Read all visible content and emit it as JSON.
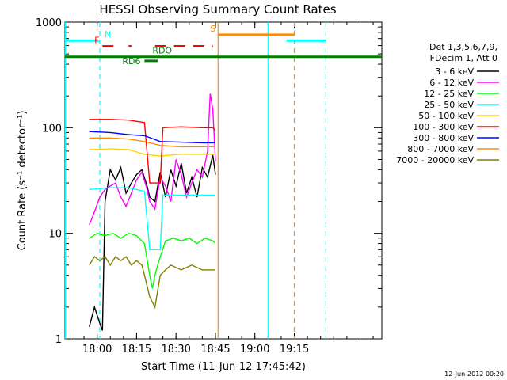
{
  "chart_data": {
    "type": "line",
    "title": "HESSI Observing Summary Count Rates",
    "xlabel": "Start Time (11-Jun-12 17:45:42)",
    "ylabel": "Count Rate (s⁻¹ detector⁻¹)",
    "ylog": true,
    "ylim": [
      1,
      1000
    ],
    "xlim_minutes": [
      17.75,
      138.3
    ],
    "x_ticks": [
      {
        "t": 30,
        "label": "18:00"
      },
      {
        "t": 45,
        "label": "18:15"
      },
      {
        "t": 60,
        "label": "18:30"
      },
      {
        "t": 75,
        "label": "18:45"
      },
      {
        "t": 90,
        "label": "19:00"
      },
      {
        "t": 105,
        "label": "19:15"
      }
    ],
    "y_ticks": [
      {
        "v": 1,
        "label": "1"
      },
      {
        "v": 10,
        "label": "10"
      },
      {
        "v": 100,
        "label": "100"
      },
      {
        "v": 1000,
        "label": "1000"
      }
    ],
    "legend_header": [
      "Det 1,3,5,6,7,9,",
      "FDecim 1, Att 0"
    ],
    "series": [
      {
        "name": "3 - 6 keV",
        "color": "#000000",
        "segments": [
          [
            [
              27,
              1.3
            ],
            [
              29,
              2
            ],
            [
              31,
              1.4
            ],
            [
              32,
              1.2
            ],
            [
              33,
              20
            ],
            [
              35,
              40
            ],
            [
              37,
              32
            ],
            [
              39,
              42
            ],
            [
              41,
              24
            ],
            [
              43,
              30
            ],
            [
              45,
              36
            ],
            [
              47,
              40
            ],
            [
              49,
              28
            ],
            [
              50,
              22
            ],
            [
              52,
              20
            ],
            [
              54,
              38
            ],
            [
              56,
              22
            ],
            [
              58,
              40
            ],
            [
              60,
              28
            ],
            [
              62,
              46
            ],
            [
              64,
              24
            ],
            [
              66,
              34
            ],
            [
              68,
              22
            ],
            [
              70,
              42
            ],
            [
              72,
              34
            ],
            [
              74,
              55
            ],
            [
              75,
              36
            ]
          ]
        ]
      },
      {
        "name": "6 - 12 keV",
        "color": "#ff00ff",
        "segments": [
          [
            [
              27,
              12
            ],
            [
              29,
              16
            ],
            [
              31,
              22
            ],
            [
              33,
              26
            ],
            [
              35,
              28
            ],
            [
              37,
              30
            ],
            [
              39,
              22
            ],
            [
              41,
              18
            ],
            [
              43,
              24
            ],
            [
              45,
              32
            ],
            [
              47,
              38
            ],
            [
              49,
              26
            ],
            [
              50,
              20
            ],
            [
              52,
              17
            ],
            [
              54,
              34
            ],
            [
              56,
              28
            ],
            [
              58,
              20
            ],
            [
              60,
              50
            ],
            [
              62,
              36
            ],
            [
              64,
              22
            ],
            [
              66,
              30
            ],
            [
              68,
              40
            ],
            [
              70,
              34
            ],
            [
              72,
              60
            ],
            [
              73,
              210
            ],
            [
              74,
              150
            ],
            [
              75,
              48
            ]
          ]
        ]
      },
      {
        "name": "12 - 25 keV",
        "color": "#00ff00",
        "segments": [
          [
            [
              27,
              9
            ],
            [
              30,
              10
            ],
            [
              33,
              9.5
            ],
            [
              36,
              10
            ],
            [
              39,
              9
            ],
            [
              42,
              10
            ],
            [
              45,
              9.5
            ],
            [
              48,
              8
            ],
            [
              50,
              4
            ],
            [
              51,
              3
            ],
            [
              52,
              4
            ],
            [
              53,
              5
            ],
            [
              56,
              8.5
            ],
            [
              59,
              9
            ],
            [
              62,
              8.5
            ],
            [
              65,
              9
            ],
            [
              68,
              8
            ],
            [
              71,
              9
            ],
            [
              74,
              8.5
            ],
            [
              75,
              8
            ]
          ]
        ]
      },
      {
        "name": "25 - 50 keV",
        "color": "#00ffff",
        "segments": [
          [
            [
              27,
              26
            ],
            [
              35,
              27
            ],
            [
              42,
              27
            ],
            [
              48,
              25
            ],
            [
              50,
              7
            ],
            [
              54,
              7
            ],
            [
              55,
              23
            ],
            [
              62,
              23
            ],
            [
              70,
              23
            ],
            [
              75,
              23
            ]
          ]
        ]
      },
      {
        "name": "50 - 100 keV",
        "color": "#ffd700",
        "segments": [
          [
            [
              27,
              62
            ],
            [
              35,
              63
            ],
            [
              42,
              62
            ],
            [
              48,
              56
            ],
            [
              54,
              54
            ],
            [
              62,
              56
            ],
            [
              70,
              56
            ],
            [
              75,
              56
            ]
          ]
        ]
      },
      {
        "name": "100 - 300 keV",
        "color": "#ff0000",
        "segments": [
          [
            [
              27,
              120
            ],
            [
              35,
              120
            ],
            [
              42,
              118
            ],
            [
              48,
              112
            ],
            [
              50,
              30
            ],
            [
              54,
              30
            ],
            [
              55,
              100
            ],
            [
              62,
              102
            ],
            [
              70,
              100
            ],
            [
              74,
              100
            ],
            [
              75,
              95
            ]
          ]
        ]
      },
      {
        "name": "300 - 800 keV",
        "color": "#0000ff",
        "segments": [
          [
            [
              27,
              92
            ],
            [
              35,
              90
            ],
            [
              42,
              86
            ],
            [
              48,
              84
            ],
            [
              54,
              74
            ],
            [
              62,
              73
            ],
            [
              70,
              72
            ],
            [
              75,
              72
            ]
          ]
        ]
      },
      {
        "name": "800 - 7000 keV",
        "color": "#ff8c00",
        "segments": [
          [
            [
              27,
              80
            ],
            [
              35,
              80
            ],
            [
              42,
              78
            ],
            [
              48,
              74
            ],
            [
              54,
              68
            ],
            [
              62,
              66
            ],
            [
              70,
              66
            ],
            [
              75,
              66
            ]
          ]
        ]
      },
      {
        "name": "7000 - 20000 keV",
        "color": "#808000",
        "segments": [
          [
            [
              27,
              5
            ],
            [
              29,
              6
            ],
            [
              31,
              5.5
            ],
            [
              33,
              6
            ],
            [
              35,
              5
            ],
            [
              37,
              6
            ],
            [
              39,
              5.5
            ],
            [
              41,
              6
            ],
            [
              43,
              5
            ],
            [
              45,
              5.5
            ],
            [
              47,
              5
            ],
            [
              48,
              4
            ],
            [
              50,
              2.5
            ],
            [
              52,
              2
            ],
            [
              54,
              4
            ],
            [
              56,
              4.5
            ],
            [
              58,
              5
            ],
            [
              62,
              4.5
            ],
            [
              66,
              5
            ],
            [
              70,
              4.5
            ],
            [
              75,
              4.5
            ]
          ]
        ]
      }
    ],
    "flags": [
      {
        "label": "N",
        "color": "#00ffff",
        "y": 670,
        "spans": [
          [
            17.75,
            31
          ],
          [
            102,
            117
          ]
        ],
        "dashed": false
      },
      {
        "label": "F",
        "color": "#ff0000",
        "y": 590,
        "spans": [
          [
            32,
            38
          ],
          [
            42,
            43
          ],
          [
            52,
            74
          ]
        ],
        "dashed": true
      },
      {
        "label": "S",
        "color": "#ff8c00",
        "y": 760,
        "spans": [
          [
            76,
            105
          ]
        ],
        "dashed": false
      },
      {
        "label": "RD6",
        "color": "#008000",
        "y": 430,
        "spans": [
          [
            48,
            53
          ]
        ],
        "dashed": false
      },
      {
        "label": "RDO",
        "color": "#008000",
        "y": 470,
        "spans": [
          [
            17.75,
            138.3
          ]
        ],
        "dashed": false
      }
    ],
    "vlines": [
      {
        "t": 31,
        "color": "#00ffff",
        "dashed": true
      },
      {
        "t": 76,
        "color": "#ff8c00",
        "dashed": false
      },
      {
        "t": 95,
        "color": "#00ffff",
        "dashed": false
      },
      {
        "t": 105,
        "color": "#ff8c00",
        "dashed": true
      },
      {
        "t": 117,
        "color": "#00ffff",
        "dashed": true
      },
      {
        "t": 17.9,
        "color": "#00ffff",
        "dashed": false
      }
    ],
    "footer": "12-Jun-2012 00:20"
  }
}
